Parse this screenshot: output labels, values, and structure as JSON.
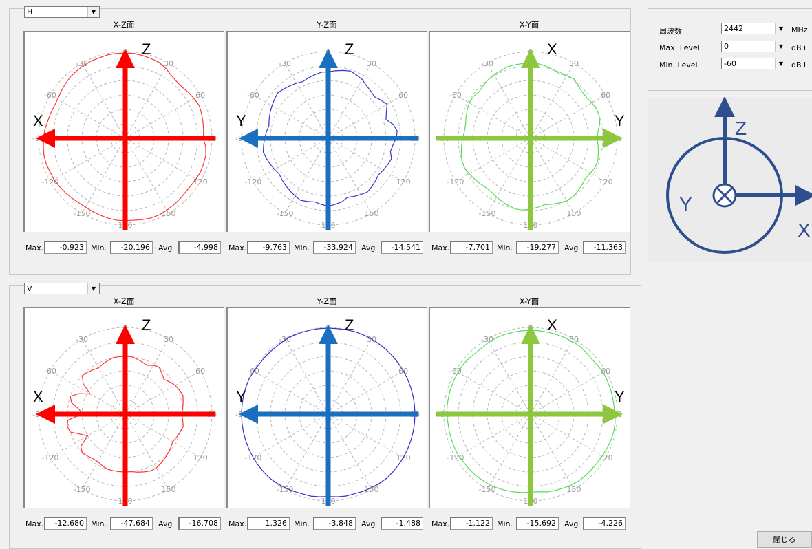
{
  "settings": {
    "freq_label": "周波数",
    "freq_value": "2442",
    "freq_unit": "MHz",
    "max_label": "Max. Level",
    "max_value": "0",
    "max_unit": "dB i",
    "min_label": "Min. Level",
    "min_value": "-60",
    "min_unit": "dB i"
  },
  "axis_diagram": {
    "z": "Z",
    "y": "Y",
    "x": "X",
    "color": "#2e4f8f"
  },
  "close_label": "閉じる",
  "stat_labels": {
    "max": "Max.",
    "min": "Min.",
    "avg": "Avg"
  },
  "grid": {
    "angle_labels": [
      "0",
      "30",
      "60",
      "90",
      "120",
      "150",
      "180",
      "-150",
      "-120",
      "-90",
      "-60",
      "-30"
    ]
  },
  "groups": [
    {
      "polarization": "H",
      "panels": [
        {
          "title": "X-Z面",
          "color": "#ff3333",
          "arrow_color": "#ff0000",
          "up_label": "Z",
          "side_label": "X",
          "arrow_dir": "left",
          "stats": {
            "max": "-0.923",
            "min": "-20.196",
            "avg": "-4.998"
          },
          "pattern": [
            -1,
            -1,
            -1.5,
            -2,
            -2.5,
            -4,
            -6,
            -7,
            -7,
            -6,
            -5,
            -4,
            -4.5,
            -5,
            -5.5,
            -6,
            -4,
            -3,
            -3,
            -3,
            -3.5,
            -4,
            -4,
            -3.5,
            -3,
            -2.5,
            -2,
            -2,
            -2.5,
            -3,
            -3,
            -3,
            -3.5,
            -4,
            -4.5,
            -5,
            -5,
            -4.5,
            -4,
            -3.5,
            -3,
            -3,
            -2.5,
            -2.5,
            -3,
            -3.5,
            -4,
            -5,
            -5.5,
            -6,
            -6,
            -5,
            -4,
            -3,
            -2.5,
            -2,
            -1.5,
            -1.5,
            -1,
            -1
          ]
        },
        {
          "title": "Y-Z面",
          "color": "#3333cc",
          "arrow_color": "#1a6fbf",
          "up_label": "Z",
          "side_label": "Y",
          "arrow_dir": "left",
          "stats": {
            "max": "-9.763",
            "min": "-33.924",
            "avg": "-14.541"
          },
          "pattern": [
            -14,
            -13,
            -12,
            -11,
            -12,
            -13,
            -15,
            -16,
            -17,
            -15,
            -13,
            -16,
            -18,
            -14,
            -12,
            -13,
            -15,
            -16,
            -14,
            -15,
            -16,
            -17,
            -16,
            -15,
            -14,
            -15,
            -16,
            -17,
            -15,
            -14,
            -13,
            -14,
            -15,
            -14,
            -13,
            -14,
            -15,
            -16,
            -17,
            -18,
            -17,
            -16,
            -15,
            -14,
            -15,
            -16,
            -17,
            -18,
            -17,
            -16,
            -15,
            -14,
            -13,
            -14,
            -15,
            -16,
            -17,
            -16,
            -15,
            -14
          ]
        },
        {
          "title": "X-Y面",
          "color": "#55dd55",
          "arrow_color": "#8dc63f",
          "up_label": "X",
          "side_label": "Y",
          "arrow_dir": "right",
          "stats": {
            "max": "-7.701",
            "min": "-19.277",
            "avg": "-11.363"
          },
          "pattern": [
            -8,
            -8,
            -9,
            -10,
            -11,
            -10,
            -9,
            -11,
            -12,
            -12,
            -11,
            -10,
            -10,
            -11,
            -13,
            -14,
            -13,
            -12,
            -11,
            -11,
            -12,
            -13,
            -12,
            -11,
            -10,
            -10,
            -11,
            -12,
            -13,
            -12,
            -11,
            -10,
            -10,
            -11,
            -12,
            -13,
            -14,
            -14,
            -13,
            -12,
            -11,
            -10,
            -10,
            -11,
            -12,
            -13,
            -14,
            -14,
            -13,
            -12,
            -11,
            -11,
            -12,
            -11,
            -10,
            -9,
            -9,
            -8,
            -8,
            -8
          ]
        }
      ]
    },
    {
      "polarization": "V",
      "panels": [
        {
          "title": "X-Z面",
          "color": "#ff3333",
          "arrow_color": "#ff0000",
          "up_label": "Z",
          "side_label": "X",
          "arrow_dir": "left",
          "stats": {
            "max": "-12.680",
            "min": "-47.684",
            "avg": "-16.708"
          },
          "pattern": [
            -20,
            -20,
            -21,
            -22,
            -23,
            -21,
            -20,
            -22,
            -24,
            -22,
            -20,
            -19,
            -18,
            -19,
            -20,
            -21,
            -20,
            -19,
            -20,
            -21,
            -22,
            -21,
            -20,
            -19,
            -18,
            -17,
            -17,
            -18,
            -19,
            -20,
            -20,
            -20,
            -20,
            -20,
            -21,
            -22,
            -22,
            -21,
            -20,
            -22,
            -30,
            -26,
            -20,
            -19,
            -20,
            -30,
            -28,
            -22,
            -20,
            -25,
            -32,
            -24,
            -20,
            -21,
            -22,
            -23,
            -22,
            -21,
            -20,
            -20
          ]
        },
        {
          "title": "Y-Z面",
          "color": "#3333cc",
          "arrow_color": "#1a6fbf",
          "up_label": "Z",
          "side_label": "Y",
          "arrow_dir": "left",
          "stats": {
            "max": "1.326",
            "min": "-3.848",
            "avg": "-1.488"
          },
          "pattern": [
            -0.5,
            -0.5,
            -0.3,
            0,
            0,
            0,
            0,
            0,
            0.2,
            0.5,
            0.8,
            1,
            1,
            1,
            1,
            1,
            1.2,
            1.3,
            1.3,
            1.3,
            1.2,
            1,
            0.5,
            0,
            -0.5,
            -1,
            -1.5,
            -2,
            -2,
            -2.5,
            -3,
            -2.5,
            -2,
            -2,
            -1.5,
            -1,
            -0.5,
            0,
            0.5,
            1,
            1,
            1,
            1,
            0.8,
            0.5,
            0.3,
            0,
            0,
            0,
            0,
            -0.5,
            -1,
            -1,
            -1,
            -1,
            -0.5,
            -0.5,
            -0.5,
            -0.5,
            -0.5
          ]
        },
        {
          "title": "X-Y面",
          "color": "#55dd55",
          "arrow_color": "#8dc63f",
          "up_label": "X",
          "side_label": "Y",
          "arrow_dir": "right",
          "stats": {
            "max": "-1.122",
            "min": "-15.692",
            "avg": "-4.226"
          },
          "pattern": [
            -2,
            -2,
            -2,
            -2,
            -2,
            -2,
            -2,
            -2.5,
            -3,
            -2.5,
            -2,
            -2,
            -2,
            -2,
            -2,
            -1.5,
            -1.2,
            -1.2,
            -1.5,
            -2,
            -2.5,
            -3,
            -3,
            -3,
            -3,
            -3.5,
            -4,
            -4.5,
            -5,
            -6,
            -6,
            -5.5,
            -5,
            -4.5,
            -4,
            -3.5,
            -3.5,
            -3,
            -3,
            -3,
            -2.5,
            -2.5,
            -2.5,
            -2.5,
            -2.5,
            -2,
            -2,
            -2,
            -2,
            -2,
            -2,
            -2,
            -2.5,
            -3,
            -3,
            -2.5,
            -2,
            -2,
            -2,
            -2
          ]
        }
      ]
    }
  ]
}
